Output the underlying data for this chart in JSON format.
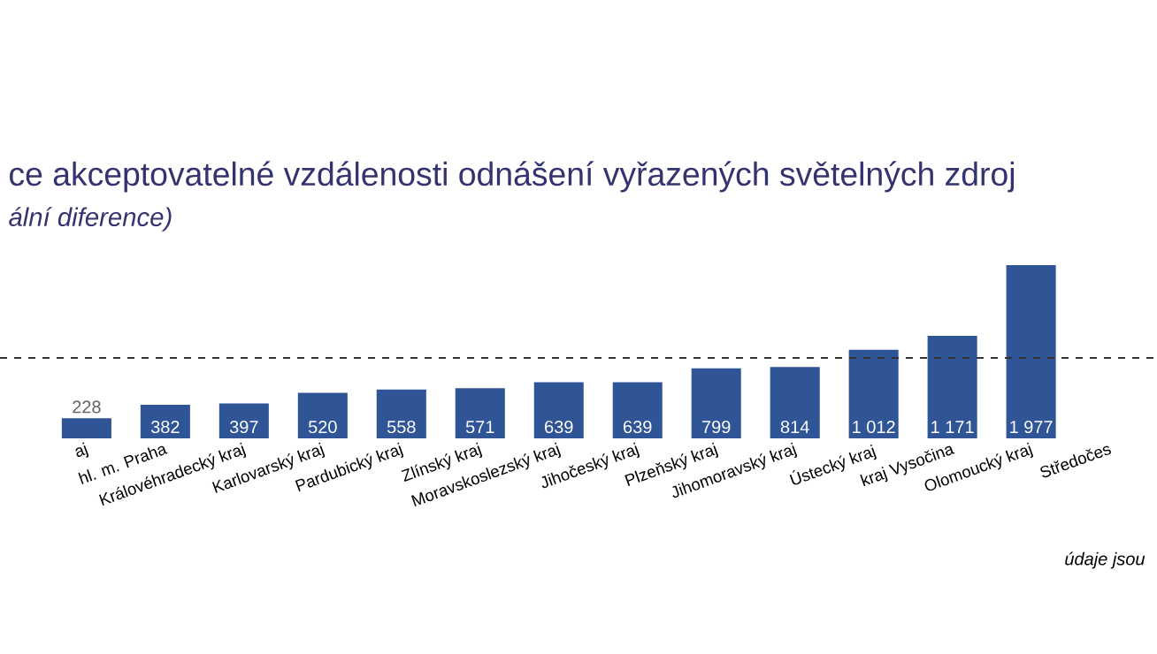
{
  "chart_data": {
    "type": "bar",
    "title": "ce akceptovatelné vzdálenosti odnášení vyřazených světelných zdroj",
    "subtitle": "*ální diference)*",
    "categories": [
      "aj",
      "hl. m. Praha",
      "Královéhradecký kraj",
      "Karlovarský kraj",
      "Pardubický kraj",
      "Zlínský kraj",
      "Moravskoslezský kraj",
      "Jihočeský kraj",
      "Plzeňský kraj",
      "Jihomoravský kraj",
      "Ústecký kraj",
      "kraj Vysočina",
      "Olomoucký kraj",
      "Středočes"
    ],
    "values": [
      228,
      382,
      397,
      520,
      558,
      571,
      639,
      639,
      799,
      814,
      1012,
      1171,
      1977,
      null
    ],
    "value_labels": [
      "228",
      "382",
      "397",
      "520",
      "558",
      "571",
      "639",
      "639",
      "799",
      "814",
      "1 012",
      "1 171",
      "1 977",
      null
    ],
    "color": "#2f5597",
    "ref_lines": [
      {
        "axis": "y",
        "value": 918,
        "line_style": "dashed"
      }
    ],
    "annotations": [
      "*údaje jsou*"
    ]
  }
}
